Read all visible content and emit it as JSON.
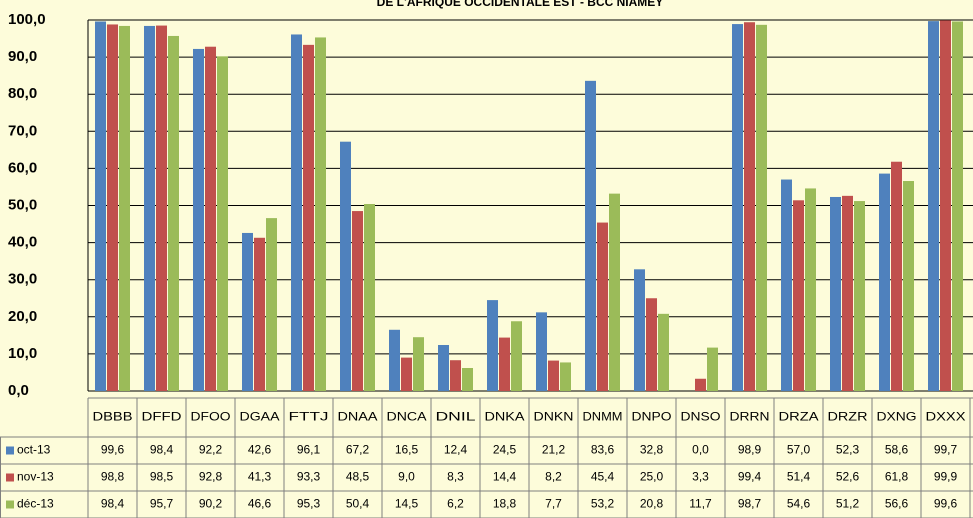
{
  "chart_data": {
    "type": "bar",
    "title": "DE L'AFRIQUE OCCIDENTALE EST - BCC NIAMEY",
    "categories": [
      "DBBB",
      "DFFD",
      "DFOO",
      "DGAA",
      "FTTJ",
      "DNAA",
      "DNCA",
      "DNIL",
      "DNKA",
      "DNKN",
      "DNMM",
      "DNPO",
      "DNSO",
      "DRRN",
      "DRZA",
      "DRZR",
      "DXNG",
      "DXXX"
    ],
    "series": [
      {
        "name": "oct-13",
        "color": "#4f81bd",
        "values": [
          99.6,
          98.4,
          92.2,
          42.6,
          96.1,
          67.2,
          16.5,
          12.4,
          24.5,
          21.2,
          83.6,
          32.8,
          0.0,
          98.9,
          57.0,
          52.3,
          58.6,
          99.7
        ],
        "value_labels": [
          "99,6",
          "98,4",
          "92,2",
          "42,6",
          "96,1",
          "67,2",
          "16,5",
          "12,4",
          "24,5",
          "21,2",
          "83,6",
          "32,8",
          "0,0",
          "98,9",
          "57,0",
          "52,3",
          "58,6",
          "99,7"
        ]
      },
      {
        "name": "nov-13",
        "color": "#c0504d",
        "values": [
          98.8,
          98.5,
          92.8,
          41.3,
          93.3,
          48.5,
          9.0,
          8.3,
          14.4,
          8.2,
          45.4,
          25.0,
          3.3,
          99.4,
          51.4,
          52.6,
          61.8,
          99.9
        ],
        "value_labels": [
          "98,8",
          "98,5",
          "92,8",
          "41,3",
          "93,3",
          "48,5",
          "9,0",
          "8,3",
          "14,4",
          "8,2",
          "45,4",
          "25,0",
          "3,3",
          "99,4",
          "51,4",
          "52,6",
          "61,8",
          "99,9"
        ]
      },
      {
        "name": "déc-13",
        "color": "#9bbb59",
        "values": [
          98.4,
          95.7,
          90.2,
          46.6,
          95.3,
          50.4,
          14.5,
          6.2,
          18.8,
          7.7,
          53.2,
          20.8,
          11.7,
          98.7,
          54.6,
          51.2,
          56.6,
          99.6
        ],
        "value_labels": [
          "98,4",
          "95,7",
          "90,2",
          "46,6",
          "95,3",
          "50,4",
          "14,5",
          "6,2",
          "18,8",
          "7,7",
          "53,2",
          "20,8",
          "11,7",
          "98,7",
          "54,6",
          "51,2",
          "56,6",
          "99,6"
        ]
      }
    ],
    "ylim": [
      0,
      100
    ],
    "yticks": [
      {
        "value": 0,
        "label": "0,0"
      },
      {
        "value": 10,
        "label": "10,0"
      },
      {
        "value": 20,
        "label": "20,0"
      },
      {
        "value": 30,
        "label": "30,0"
      },
      {
        "value": 40,
        "label": "40,0"
      },
      {
        "value": 50,
        "label": "50,0"
      },
      {
        "value": 60,
        "label": "60,0"
      },
      {
        "value": 70,
        "label": "70,0"
      },
      {
        "value": 80,
        "label": "80,0"
      },
      {
        "value": 90,
        "label": "90,0"
      },
      {
        "value": 100,
        "label": "100,0"
      }
    ],
    "grid": true
  }
}
